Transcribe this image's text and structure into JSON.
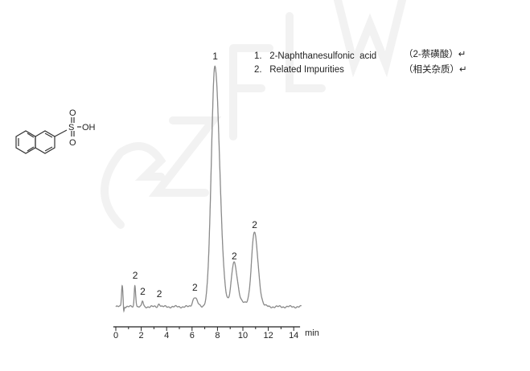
{
  "chart_data": {
    "type": "line",
    "title": "",
    "xlabel": "min",
    "ylabel": "",
    "xlim": [
      0,
      14.5
    ],
    "ylim": [
      0,
      100
    ],
    "x_ticks": [
      0,
      2,
      4,
      6,
      8,
      10,
      12,
      14
    ],
    "grid": false,
    "line_color": "#8a8a8a",
    "peaks": [
      {
        "rt": 0.5,
        "height": 9,
        "width": 0.05,
        "label": ""
      },
      {
        "rt": 1.5,
        "height": 9,
        "width": 0.05,
        "label": "2"
      },
      {
        "rt": 2.1,
        "height": 2.3,
        "width": 0.05,
        "label": "2"
      },
      {
        "rt": 3.4,
        "height": 1.3,
        "width": 0.07,
        "label": "2"
      },
      {
        "rt": 6.2,
        "height": 4,
        "width": 0.15,
        "label": "2"
      },
      {
        "rt": 7.8,
        "height": 100,
        "width": 0.28,
        "label": "1"
      },
      {
        "rt": 9.3,
        "height": 17,
        "width": 0.2,
        "label": "2"
      },
      {
        "rt": 10.9,
        "height": 30,
        "width": 0.22,
        "label": "2"
      }
    ]
  },
  "legend": [
    {
      "num": "1.",
      "name": "2-Naphthanesulfonic  acid",
      "cn": "（2-萘磺酸）↵"
    },
    {
      "num": "2.",
      "name": "Related Impurities",
      "cn": "（相关杂质）↵"
    }
  ],
  "structure": {
    "so3h_label": "S",
    "o_top": "O",
    "o_bottom": "O",
    "oh": "OH"
  },
  "watermark": "GZFLW"
}
